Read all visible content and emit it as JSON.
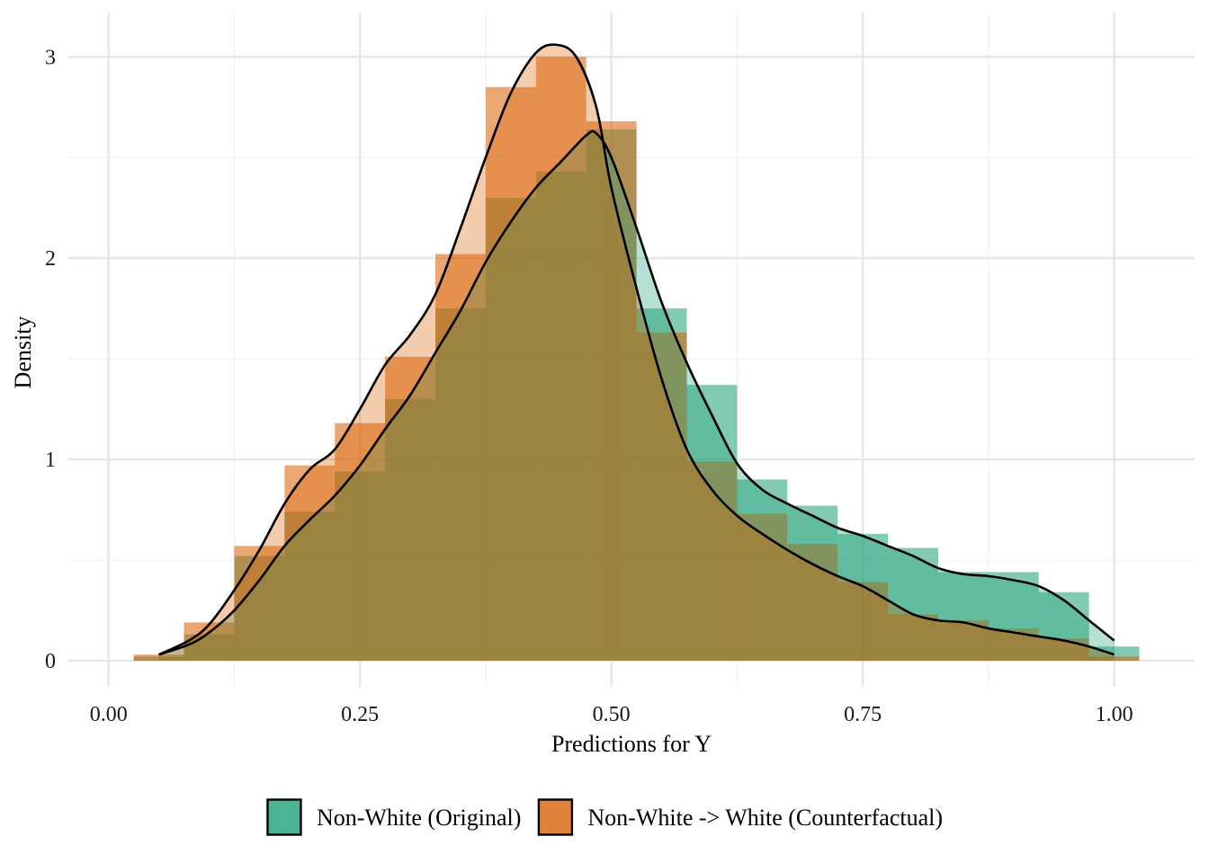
{
  "chart_data": {
    "type": "histogram-density",
    "title": "",
    "xlabel": "Predictions for Y",
    "ylabel": "Density",
    "xlim": [
      -0.04,
      1.08
    ],
    "ylim": [
      -0.13,
      3.22
    ],
    "x_ticks": [
      0.0,
      0.25,
      0.5,
      0.75,
      1.0
    ],
    "x_tick_labels": [
      "0.00",
      "0.25",
      "0.50",
      "0.75",
      "1.00"
    ],
    "y_ticks": [
      0,
      1,
      2,
      3
    ],
    "y_tick_labels": [
      "0",
      "1",
      "2",
      "3"
    ],
    "grid": true,
    "legend_position": "bottom",
    "bin_width": 0.05,
    "bin_starts": [
      0.025,
      0.075,
      0.125,
      0.175,
      0.225,
      0.275,
      0.325,
      0.375,
      0.425,
      0.475,
      0.525,
      0.575,
      0.625,
      0.675,
      0.725,
      0.775,
      0.825,
      0.875,
      0.925,
      0.975
    ],
    "series": [
      {
        "name": "Non-White (Original)",
        "color": "#1b9e77",
        "hist": [
          0.02,
          0.13,
          0.52,
          0.74,
          0.94,
          1.3,
          1.75,
          2.3,
          2.43,
          2.64,
          1.75,
          1.37,
          0.9,
          0.77,
          0.63,
          0.56,
          0.44,
          0.44,
          0.34,
          0.07
        ],
        "density_x": [
          0.05,
          0.08,
          0.1,
          0.125,
          0.15,
          0.175,
          0.2,
          0.225,
          0.25,
          0.275,
          0.3,
          0.325,
          0.35,
          0.375,
          0.4,
          0.425,
          0.45,
          0.475,
          0.485,
          0.5,
          0.525,
          0.55,
          0.575,
          0.6,
          0.625,
          0.65,
          0.675,
          0.7,
          0.725,
          0.75,
          0.775,
          0.8,
          0.825,
          0.85,
          0.875,
          0.9,
          0.925,
          0.95,
          0.975,
          1.0
        ],
        "density_y": [
          0.03,
          0.08,
          0.14,
          0.25,
          0.4,
          0.57,
          0.7,
          0.82,
          0.97,
          1.15,
          1.32,
          1.53,
          1.74,
          1.98,
          2.18,
          2.35,
          2.48,
          2.61,
          2.62,
          2.5,
          2.15,
          1.78,
          1.48,
          1.22,
          0.98,
          0.85,
          0.78,
          0.72,
          0.66,
          0.62,
          0.57,
          0.52,
          0.46,
          0.43,
          0.42,
          0.4,
          0.37,
          0.3,
          0.2,
          0.1
        ]
      },
      {
        "name": "Non-White -> White (Counterfactual)",
        "color": "#d95f02",
        "hist": [
          0.03,
          0.19,
          0.57,
          0.97,
          1.18,
          1.51,
          2.02,
          2.85,
          3.0,
          2.68,
          1.63,
          0.99,
          0.73,
          0.58,
          0.39,
          0.23,
          0.2,
          0.16,
          0.11,
          0.02
        ],
        "density_x": [
          0.05,
          0.08,
          0.1,
          0.125,
          0.15,
          0.175,
          0.2,
          0.225,
          0.25,
          0.275,
          0.3,
          0.325,
          0.35,
          0.375,
          0.4,
          0.425,
          0.445,
          0.465,
          0.485,
          0.5,
          0.525,
          0.55,
          0.575,
          0.6,
          0.625,
          0.65,
          0.675,
          0.7,
          0.725,
          0.75,
          0.775,
          0.8,
          0.825,
          0.85,
          0.875,
          0.9,
          0.925,
          0.95,
          0.975,
          1.0
        ],
        "density_y": [
          0.03,
          0.1,
          0.18,
          0.35,
          0.55,
          0.78,
          0.95,
          1.05,
          1.25,
          1.47,
          1.62,
          1.82,
          2.15,
          2.5,
          2.82,
          3.02,
          3.06,
          3.0,
          2.75,
          2.35,
          1.85,
          1.4,
          1.05,
          0.85,
          0.72,
          0.63,
          0.55,
          0.48,
          0.42,
          0.37,
          0.3,
          0.23,
          0.2,
          0.19,
          0.16,
          0.14,
          0.12,
          0.1,
          0.07,
          0.03
        ]
      }
    ]
  }
}
